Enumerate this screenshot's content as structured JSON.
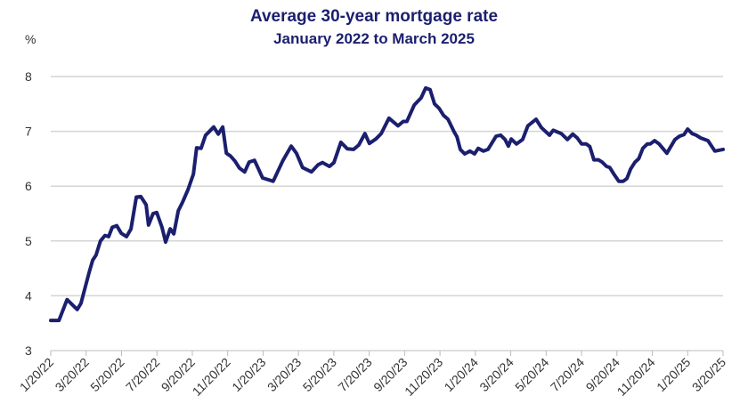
{
  "chart_data": {
    "type": "line",
    "title": "Average 30-year mortgage rate",
    "subtitle": "January 2022 to March 2025",
    "ylabel": "%",
    "xlabel": "",
    "ylim": [
      3,
      8
    ],
    "yticks": [
      3,
      4,
      5,
      6,
      7,
      8
    ],
    "grid": true,
    "x_unit": "weeks since 1/20/22",
    "xlim": [
      0,
      165
    ],
    "xtick_labels": [
      "1/20/22",
      "3/20/22",
      "5/20/22",
      "7/20/22",
      "9/20/22",
      "11/20/22",
      "1/20/23",
      "3/20/23",
      "5/20/23",
      "7/20/23",
      "9/20/23",
      "11/20/23",
      "1/20/24",
      "3/20/24",
      "5/20/24",
      "7/20/24",
      "9/20/24",
      "11/20/24",
      "1/20/25",
      "3/20/25"
    ],
    "line_color": "#1b1f6e",
    "series": [
      {
        "name": "Average 30-year mortgage rate",
        "x": [
          0,
          2,
          4,
          6.5,
          7.4,
          9.4,
          10.3,
          11.1,
          12.2,
          13.3,
          14.2,
          15.1,
          16.2,
          17.3,
          18.6,
          19.7,
          21,
          22.1,
          23.4,
          24,
          25.1,
          26,
          27.3,
          28.2,
          29.3,
          30.2,
          31.3,
          32.3,
          33.7,
          35,
          35.8,
          36.9,
          38,
          38.7,
          40,
          41.1,
          42.2,
          43.1,
          44.1,
          45.2,
          46.3,
          47.6,
          48.7,
          50,
          52,
          54.6,
          57,
          59,
          60.3,
          61.8,
          64,
          65.6,
          66.7,
          68.4,
          69.5,
          71.2,
          72.8,
          74.3,
          75.6,
          77.1,
          78.2,
          79.8,
          81.1,
          83,
          85.2,
          86.5,
          87.4,
          89.2,
          90.9,
          92,
          93.1,
          94.2,
          95.3,
          96.4,
          97.5,
          99,
          99.7,
          100.5,
          101.6,
          102.9,
          104,
          104.9,
          106.2,
          107.3,
          109.3,
          110.4,
          111.5,
          112.3,
          113,
          114.3,
          115.8,
          117.1,
          119.1,
          120.4,
          122.4,
          123.3,
          125.3,
          126.8,
          128.1,
          129.2,
          130.3,
          131.4,
          132.3,
          133.3,
          134.4,
          135.3,
          136.4,
          137.2,
          138.3,
          139.4,
          140.5,
          141.4,
          142.3,
          143.4,
          144.3,
          145.3,
          146.4,
          147.1,
          148.2,
          149.3,
          151.2,
          153.2,
          154.3,
          155.4,
          156.3,
          157.4,
          158.4,
          159.5,
          161.3,
          163,
          165
        ],
        "values": [
          3.55,
          3.55,
          3.93,
          3.75,
          3.86,
          4.42,
          4.65,
          4.74,
          5.0,
          5.1,
          5.08,
          5.25,
          5.28,
          5.14,
          5.08,
          5.22,
          5.8,
          5.81,
          5.66,
          5.29,
          5.5,
          5.52,
          5.25,
          4.98,
          5.22,
          5.13,
          5.55,
          5.7,
          5.94,
          6.22,
          6.7,
          6.69,
          6.93,
          6.98,
          7.08,
          6.95,
          7.08,
          6.6,
          6.55,
          6.46,
          6.33,
          6.26,
          6.44,
          6.47,
          6.15,
          6.09,
          6.47,
          6.73,
          6.6,
          6.34,
          6.26,
          6.39,
          6.43,
          6.36,
          6.43,
          6.8,
          6.68,
          6.67,
          6.75,
          6.96,
          6.78,
          6.86,
          6.96,
          7.24,
          7.1,
          7.18,
          7.18,
          7.48,
          7.61,
          7.79,
          7.76,
          7.5,
          7.42,
          7.29,
          7.22,
          6.99,
          6.9,
          6.67,
          6.59,
          6.64,
          6.59,
          6.69,
          6.64,
          6.67,
          6.91,
          6.93,
          6.85,
          6.73,
          6.86,
          6.77,
          6.85,
          7.1,
          7.22,
          7.07,
          6.93,
          7.02,
          6.96,
          6.85,
          6.95,
          6.88,
          6.77,
          6.77,
          6.72,
          6.48,
          6.48,
          6.44,
          6.36,
          6.34,
          6.21,
          6.09,
          6.09,
          6.14,
          6.31,
          6.44,
          6.5,
          6.69,
          6.77,
          6.77,
          6.83,
          6.77,
          6.6,
          6.85,
          6.91,
          6.94,
          7.04,
          6.96,
          6.93,
          6.88,
          6.83,
          6.64,
          6.67
        ]
      }
    ]
  }
}
